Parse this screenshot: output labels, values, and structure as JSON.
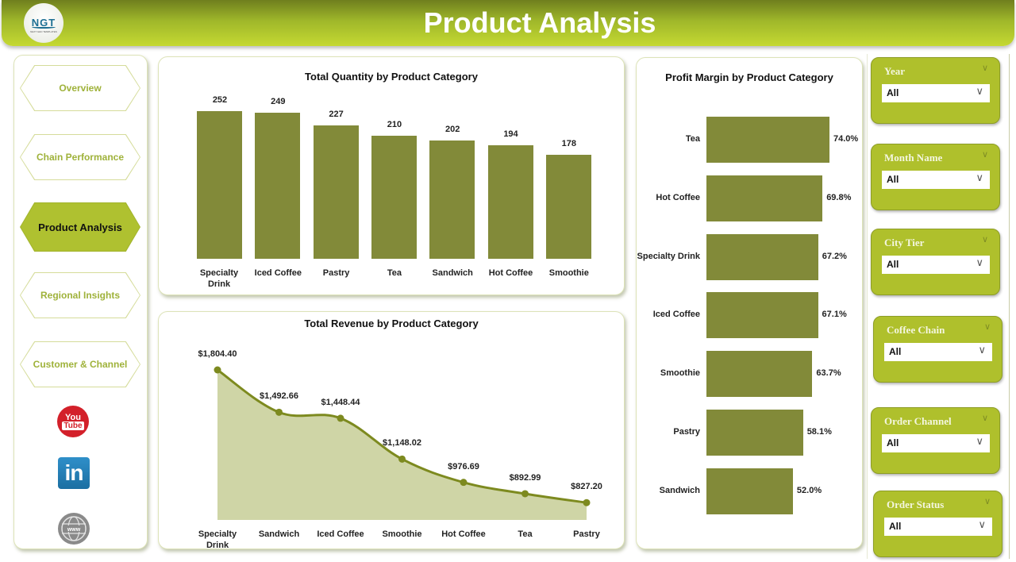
{
  "header": {
    "title": "Product Analysis",
    "logo_text": "NGT",
    "logo_subtext": "NEXT GEN TEMPLATES"
  },
  "nav": {
    "items": [
      {
        "label": "Overview",
        "active": false
      },
      {
        "label": "Chain Performance",
        "active": false
      },
      {
        "label": "Product Analysis",
        "active": true
      },
      {
        "label": "Regional Insights",
        "active": false
      },
      {
        "label": "Customer & Channel",
        "active": false
      }
    ],
    "social": {
      "youtube_top": "You",
      "youtube_bottom": "Tube",
      "linkedin": "in"
    }
  },
  "slicers": [
    {
      "label": "Year",
      "value": "All"
    },
    {
      "label": "Month Name",
      "value": "All"
    },
    {
      "label": "City Tier",
      "value": "All"
    },
    {
      "label": "Coffee Chain",
      "value": "All"
    },
    {
      "label": "Order Channel",
      "value": "All"
    },
    {
      "label": "Order Status",
      "value": "All"
    }
  ],
  "colors": {
    "accent": "#afc02c",
    "bar": "#828a39",
    "area": "#cfd5a6",
    "line": "#7d8a1f"
  },
  "chart_data": [
    {
      "type": "bar",
      "title": "Total Quantity by Product Category",
      "categories": [
        "Specialty Drink",
        "Iced Coffee",
        "Pastry",
        "Tea",
        "Sandwich",
        "Hot Coffee",
        "Smoothie"
      ],
      "values": [
        252,
        249,
        227,
        210,
        202,
        194,
        178
      ],
      "labels": [
        "252",
        "249",
        "227",
        "210",
        "202",
        "194",
        "178"
      ],
      "xlabel": "",
      "ylabel": ""
    },
    {
      "type": "area",
      "title": "Total Revenue by Product Category",
      "categories": [
        "Specialty Drink",
        "Sandwich",
        "Iced Coffee",
        "Smoothie",
        "Hot Coffee",
        "Tea",
        "Pastry"
      ],
      "values": [
        1804.4,
        1492.66,
        1448.44,
        1148.02,
        976.69,
        892.99,
        827.2
      ],
      "labels": [
        "$1,804.40",
        "$1,492.66",
        "$1,448.44",
        "$1,148.02",
        "$976.69",
        "$892.99",
        "$827.20"
      ],
      "xlabel": "",
      "ylabel": ""
    },
    {
      "type": "bar",
      "orientation": "horizontal",
      "title": "Profit Margin by Product Category",
      "categories": [
        "Tea",
        "Hot Coffee",
        "Specialty Drink",
        "Iced Coffee",
        "Smoothie",
        "Pastry",
        "Sandwich"
      ],
      "values": [
        74.0,
        69.8,
        67.2,
        67.1,
        63.7,
        58.1,
        52.0
      ],
      "labels": [
        "74.0%",
        "69.8%",
        "67.2%",
        "67.1%",
        "63.7%",
        "58.1%",
        "52.0%"
      ],
      "xlabel": "",
      "ylabel": ""
    }
  ]
}
